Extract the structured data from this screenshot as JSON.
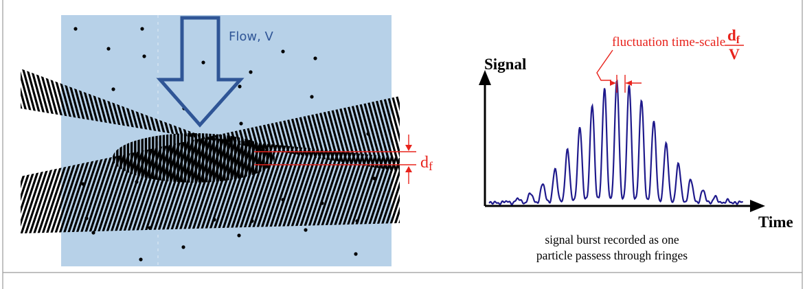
{
  "colors": {
    "flow_region": "#b7d1e8",
    "flow_arrow": "#2f5596",
    "flow_label": "#2f5596",
    "fringe": "#000000",
    "particle": "#000000",
    "annotation": "#e8231c",
    "signal_trace": "#1f1a8c",
    "axis": "#000000",
    "frame": "#9a9a9a"
  },
  "left_panel": {
    "flow_label": "Flow, V",
    "fringe_spacing_label": "d",
    "fringe_spacing_subscript": "f"
  },
  "right_panel": {
    "y_axis_label": "Signal",
    "x_axis_label": "Time",
    "fluctuation_label": "fluctuation time-scale",
    "fraction_numerator": "d",
    "fraction_numerator_subscript": "f",
    "fraction_denominator": "V",
    "caption_line1": "signal burst recorded as one",
    "caption_line2": "particle passess through fringes"
  }
}
